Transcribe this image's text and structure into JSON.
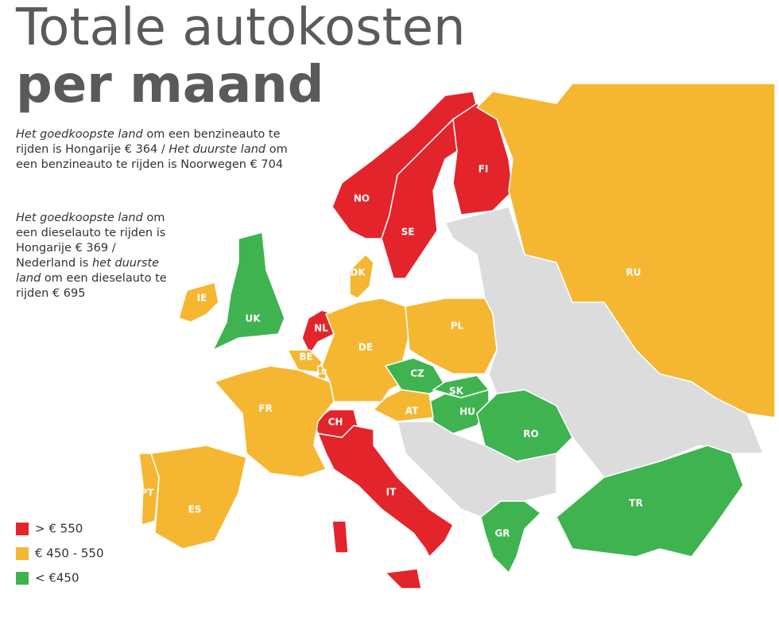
{
  "header": {
    "title": [
      "Totale autokosten",
      "per maand"
    ]
  },
  "paragraphs": [
    [
      {
        "text": "Het goedkoopste land",
        "italic": true
      },
      {
        "text": " om een benzineauto te rijden is Hongarije € 364 / "
      },
      {
        "text": "Het duurste land",
        "italic": true
      },
      {
        "text": " om een benzineauto te rijden is Noorwegen € 704"
      }
    ],
    [
      {
        "text": "Het goedkoopste land",
        "italic": true
      },
      {
        "text": " om een dieselauto te rijden is Hongarije € 369 / Nederland is "
      },
      {
        "text": "het duurste land",
        "italic": true
      },
      {
        "text": " om een dieselauto te rijden € 695"
      }
    ]
  ],
  "legend": [
    {
      "label": "> € 550",
      "color": "#e3242b"
    },
    {
      "label": "€ 450 - 550",
      "color": "#f5b731"
    },
    {
      "label": "< €450",
      "color": "#3fb34f"
    }
  ],
  "countries": [
    {
      "label": "NO",
      "color": "#e3242b"
    },
    {
      "label": "SE",
      "color": "#e3242b"
    },
    {
      "label": "FI",
      "color": "#e3242b"
    },
    {
      "label": "RU",
      "color": "#f5b731"
    },
    {
      "label": "DK",
      "color": "#f5b731"
    },
    {
      "label": "IE",
      "color": "#f5b731"
    },
    {
      "label": "UK",
      "color": "#3fb34f"
    },
    {
      "label": "NL",
      "color": "#e3242b"
    },
    {
      "label": "BE",
      "color": "#f5b731"
    },
    {
      "label": "LU",
      "color": "#f5b731"
    },
    {
      "label": "DE",
      "color": "#f5b731"
    },
    {
      "label": "PL",
      "color": "#f5b731"
    },
    {
      "label": "CZ",
      "color": "#3fb34f"
    },
    {
      "label": "SK",
      "color": "#3fb34f"
    },
    {
      "label": "HU",
      "color": "#3fb34f"
    },
    {
      "label": "AT",
      "color": "#f5b731"
    },
    {
      "label": "CH",
      "color": "#e3242b"
    },
    {
      "label": "FR",
      "color": "#f5b731"
    },
    {
      "label": "RO",
      "color": "#3fb34f"
    },
    {
      "label": "IT",
      "color": "#e3242b"
    },
    {
      "label": "PT",
      "color": "#f5b731"
    },
    {
      "label": "ES",
      "color": "#f5b731"
    },
    {
      "label": "GR",
      "color": "#3fb34f"
    },
    {
      "label": "TR",
      "color": "#3fb34f"
    }
  ]
}
